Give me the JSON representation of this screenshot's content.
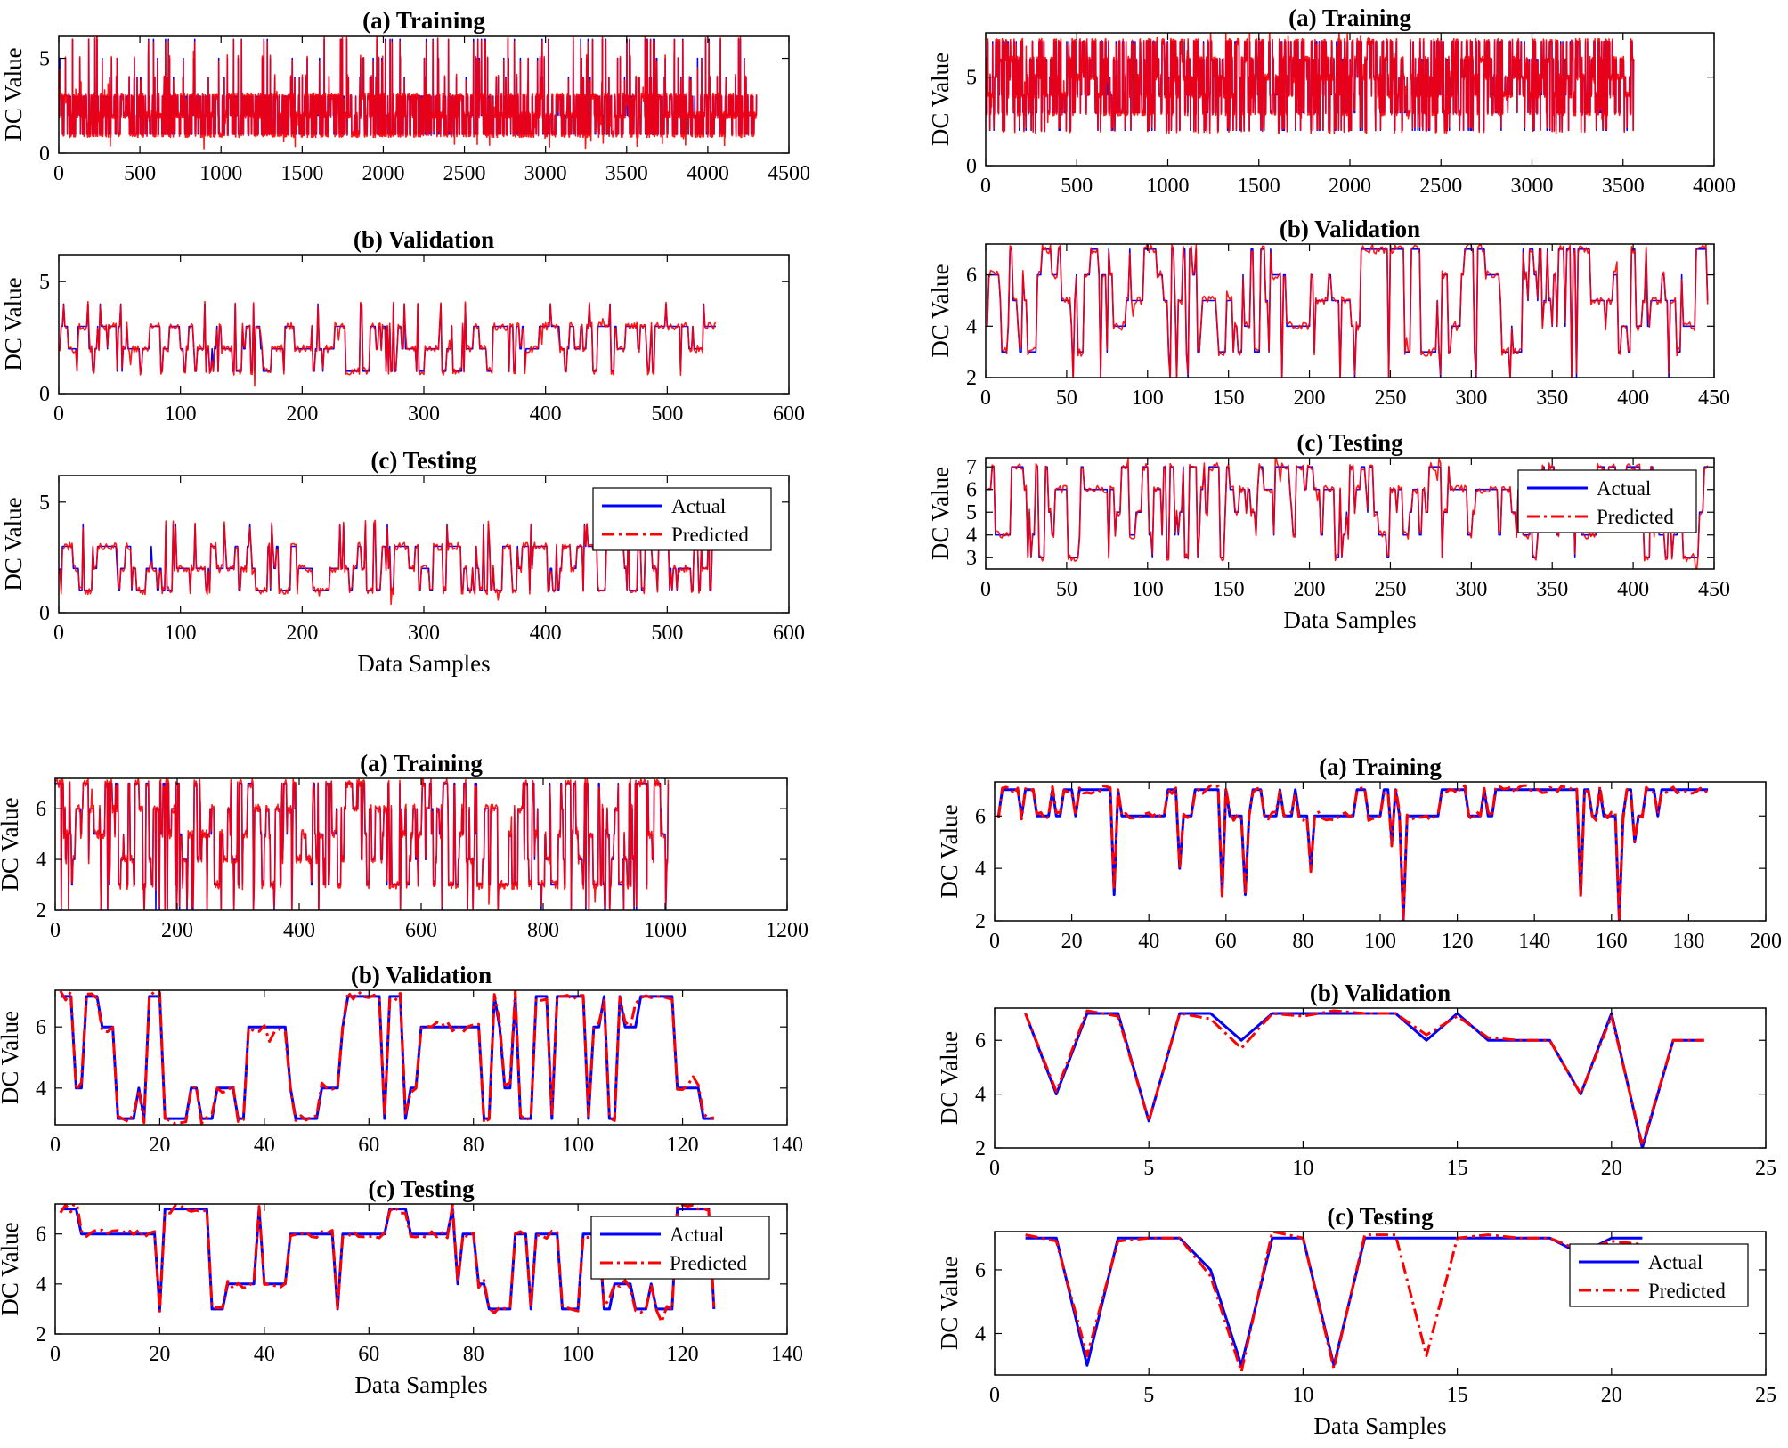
{
  "colors": {
    "actual": "#0000ff",
    "predicted": "#ff0000",
    "axis": "#000000",
    "background": "#ffffff"
  },
  "legend": {
    "actual": "Actual",
    "predicted": "Predicted"
  },
  "chart_data": [
    {
      "type": "line",
      "group": "top-left",
      "subplot": "a",
      "title": "(a) Training",
      "ylabel": "DC  Value",
      "xlabel": "",
      "xlim": [
        0,
        4500
      ],
      "xticks": [
        0,
        500,
        1000,
        1500,
        2000,
        2500,
        3000,
        3500,
        4000,
        4500
      ],
      "ylim": [
        0,
        6.2
      ],
      "yticks": [
        0,
        5
      ],
      "n_samples": 4300,
      "levels": [
        1,
        2,
        3
      ],
      "spike_levels": [
        4,
        5,
        6
      ],
      "min": 1,
      "max": 6,
      "legend": false,
      "series": [
        {
          "name": "Actual",
          "style": "solid"
        },
        {
          "name": "Predicted",
          "style": "dash-dot"
        }
      ]
    },
    {
      "type": "line",
      "group": "top-left",
      "subplot": "b",
      "title": "(b) Validation",
      "ylabel": "DC  Value",
      "xlabel": "",
      "xlim": [
        0,
        600
      ],
      "xticks": [
        0,
        100,
        200,
        300,
        400,
        500,
        600
      ],
      "ylim": [
        0,
        6.2
      ],
      "yticks": [
        0,
        5
      ],
      "n_samples": 540,
      "levels": [
        1,
        2,
        3
      ],
      "spike_levels": [
        4
      ],
      "min": 1,
      "max": 6,
      "legend": false,
      "series": [
        {
          "name": "Actual",
          "style": "solid"
        },
        {
          "name": "Predicted",
          "style": "dash-dot"
        }
      ]
    },
    {
      "type": "line",
      "group": "top-left",
      "subplot": "c",
      "title": "(c) Testing",
      "ylabel": "DC  Value",
      "xlabel": "Data Samples",
      "xlim": [
        0,
        600
      ],
      "xticks": [
        0,
        100,
        200,
        300,
        400,
        500,
        600
      ],
      "ylim": [
        0,
        6.2
      ],
      "yticks": [
        0,
        5
      ],
      "n_samples": 540,
      "levels": [
        1,
        2,
        3
      ],
      "spike_levels": [
        4
      ],
      "min": 1,
      "max": 6,
      "legend": true,
      "legend_location": "top-right",
      "series": [
        {
          "name": "Actual",
          "style": "solid"
        },
        {
          "name": "Predicted",
          "style": "dash-dot"
        }
      ]
    },
    {
      "type": "line",
      "group": "top-right",
      "subplot": "a",
      "title": "(a) Training",
      "ylabel": "DC Value",
      "xlabel": "",
      "xlim": [
        0,
        4000
      ],
      "xticks": [
        0,
        500,
        1000,
        1500,
        2000,
        2500,
        3000,
        3500,
        4000
      ],
      "ylim": [
        0,
        7.5
      ],
      "yticks": [
        0,
        5
      ],
      "n_samples": 3560,
      "levels": [
        3,
        4,
        5,
        6,
        7
      ],
      "spike_levels": [
        2
      ],
      "min": 1,
      "max": 7,
      "legend": false,
      "series": [
        {
          "name": "Actual",
          "style": "solid"
        },
        {
          "name": "Predicted",
          "style": "dash-dot"
        }
      ]
    },
    {
      "type": "line",
      "group": "top-right",
      "subplot": "b",
      "title": "(b) Validation",
      "ylabel": "DC Value",
      "xlabel": "",
      "xlim": [
        0,
        450
      ],
      "xticks": [
        0,
        50,
        100,
        150,
        200,
        250,
        300,
        350,
        400,
        450
      ],
      "ylim": [
        2,
        7.2
      ],
      "yticks": [
        2,
        4,
        6
      ],
      "n_samples": 446,
      "levels": [
        3,
        4,
        5,
        6,
        7
      ],
      "spike_levels": [
        2
      ],
      "min": 2,
      "max": 7,
      "legend": false,
      "series": [
        {
          "name": "Actual",
          "style": "solid"
        },
        {
          "name": "Predicted",
          "style": "dash-dot"
        }
      ]
    },
    {
      "type": "line",
      "group": "top-right",
      "subplot": "c",
      "title": "(c) Testing",
      "ylabel": "DC Value",
      "xlabel": "Data Samples",
      "xlim": [
        0,
        450
      ],
      "xticks": [
        0,
        50,
        100,
        150,
        200,
        250,
        300,
        350,
        400,
        450
      ],
      "ylim": [
        2.5,
        7.4
      ],
      "yticks": [
        3,
        4,
        5,
        6,
        7
      ],
      "n_samples": 446,
      "levels": [
        3,
        4,
        5,
        6,
        7
      ],
      "spike_levels": [],
      "min": 3,
      "max": 7,
      "legend": true,
      "legend_location": "top-right",
      "series": [
        {
          "name": "Actual",
          "style": "solid"
        },
        {
          "name": "Predicted",
          "style": "dash-dot"
        }
      ]
    },
    {
      "type": "line",
      "group": "bottom-left",
      "subplot": "a",
      "title": "(a) Training",
      "ylabel": "DC Value",
      "xlabel": "",
      "xlim": [
        0,
        1200
      ],
      "xticks": [
        0,
        200,
        400,
        600,
        800,
        1000,
        1200
      ],
      "ylim": [
        2,
        7.2
      ],
      "yticks": [
        2,
        4,
        6
      ],
      "n_samples": 1005,
      "levels": [
        3,
        4,
        5,
        6,
        7
      ],
      "spike_levels": [
        2
      ],
      "min": 2,
      "max": 7,
      "legend": false,
      "series": [
        {
          "name": "Actual",
          "style": "solid"
        },
        {
          "name": "Predicted",
          "style": "dash-dot"
        }
      ]
    },
    {
      "type": "line",
      "group": "bottom-left",
      "subplot": "b",
      "title": "(b) Validation",
      "ylabel": "DC Value",
      "xlabel": "",
      "xlim": [
        0,
        140
      ],
      "xticks": [
        0,
        20,
        40,
        60,
        80,
        100,
        120,
        140
      ],
      "ylim": [
        2.8,
        7.2
      ],
      "yticks": [
        4,
        6
      ],
      "n_samples": 126,
      "levels": [
        3,
        4,
        6,
        7
      ],
      "spike_levels": [],
      "min": 3,
      "max": 7,
      "legend": false,
      "series": [
        {
          "name": "Actual",
          "style": "solid"
        },
        {
          "name": "Predicted",
          "style": "dash-dot"
        }
      ]
    },
    {
      "type": "line",
      "group": "bottom-left",
      "subplot": "c",
      "title": "(c) Testing",
      "ylabel": "DC Value",
      "xlabel": "Data Samples",
      "xlim": [
        0,
        140
      ],
      "xticks": [
        0,
        20,
        40,
        60,
        80,
        100,
        120,
        140
      ],
      "ylim": [
        2,
        7.2
      ],
      "yticks": [
        2,
        4,
        6
      ],
      "n_samples": 126,
      "levels": [
        3,
        4,
        6,
        7
      ],
      "spike_levels": [],
      "min": 2,
      "max": 7,
      "legend": true,
      "legend_location": "top-right",
      "series": [
        {
          "name": "Actual",
          "style": "solid"
        },
        {
          "name": "Predicted",
          "style": "dash-dot"
        }
      ]
    },
    {
      "type": "line",
      "group": "bottom-right",
      "subplot": "a",
      "title": "(a) Training",
      "ylabel": "DC Value",
      "xlabel": "",
      "xlim": [
        0,
        200
      ],
      "xticks": [
        0,
        20,
        40,
        60,
        80,
        100,
        120,
        140,
        160,
        180,
        200
      ],
      "ylim": [
        2,
        7.3
      ],
      "yticks": [
        2,
        4,
        6
      ],
      "n_samples": 185,
      "levels": [
        6,
        7
      ],
      "spike_levels": [
        2,
        3,
        4,
        5
      ],
      "min": 2,
      "max": 7,
      "legend": false,
      "series": [
        {
          "name": "Actual",
          "style": "solid"
        },
        {
          "name": "Predicted",
          "style": "dash-dot"
        }
      ]
    },
    {
      "type": "line",
      "group": "bottom-right",
      "subplot": "b",
      "title": "(b) Validation",
      "ylabel": "DC Value",
      "xlabel": "",
      "xlim": [
        0,
        25
      ],
      "xticks": [
        0,
        5,
        10,
        15,
        20,
        25
      ],
      "ylim": [
        2,
        7.2
      ],
      "yticks": [
        2,
        4,
        6
      ],
      "legend": false,
      "series": [
        {
          "name": "Actual",
          "style": "solid",
          "x": [
            1,
            2,
            3,
            4,
            5,
            6,
            7,
            8,
            9,
            10,
            11,
            12,
            13,
            14,
            15,
            16,
            17,
            18,
            19,
            20,
            21,
            22,
            23
          ],
          "values": [
            7,
            4,
            7,
            7,
            3,
            7,
            7,
            6,
            7,
            7,
            7,
            7,
            7,
            6,
            7,
            6,
            6,
            6,
            4,
            7,
            2,
            6,
            6
          ]
        },
        {
          "name": "Predicted",
          "style": "dash-dot",
          "x": [
            1,
            2,
            3,
            4,
            5,
            6,
            7,
            8,
            9,
            10,
            11,
            12,
            13,
            14,
            15,
            16,
            17,
            18,
            19,
            20,
            21,
            22,
            23
          ],
          "values": [
            7,
            4.1,
            7.1,
            6.9,
            3,
            7,
            6.8,
            5.7,
            7,
            6.9,
            7.1,
            7,
            7,
            6.2,
            6.9,
            6.1,
            6,
            6,
            4,
            6.9,
            2.1,
            6,
            6
          ]
        }
      ]
    },
    {
      "type": "line",
      "group": "bottom-right",
      "subplot": "c",
      "title": "(c) Testing",
      "ylabel": "DC Value",
      "xlabel": "Data Samples",
      "xlim": [
        0,
        25
      ],
      "xticks": [
        0,
        5,
        10,
        15,
        20,
        25
      ],
      "ylim": [
        2.7,
        7.2
      ],
      "yticks": [
        4,
        6
      ],
      "legend": true,
      "legend_location": "top-right",
      "series": [
        {
          "name": "Actual",
          "style": "solid",
          "x": [
            1,
            2,
            3,
            4,
            5,
            6,
            7,
            8,
            9,
            10,
            11,
            12,
            13,
            14,
            15,
            16,
            17,
            18,
            19,
            20,
            21
          ],
          "values": [
            7,
            7,
            3,
            7,
            7,
            7,
            6,
            3,
            7,
            7,
            3,
            7,
            7,
            7,
            7,
            7,
            7,
            7,
            6.5,
            7,
            7
          ]
        },
        {
          "name": "Predicted",
          "style": "dash-dot",
          "x": [
            1,
            2,
            3,
            4,
            5,
            6,
            7,
            8,
            9,
            10,
            11,
            12,
            13,
            14,
            15,
            16,
            17,
            18,
            19,
            20,
            21
          ],
          "values": [
            7.1,
            6.9,
            3.3,
            6.9,
            7,
            7,
            5.8,
            2.8,
            7.2,
            7,
            2.9,
            7.1,
            7.1,
            3.3,
            7,
            7.1,
            7,
            7,
            6.6,
            6.9,
            6.8
          ]
        }
      ]
    }
  ]
}
